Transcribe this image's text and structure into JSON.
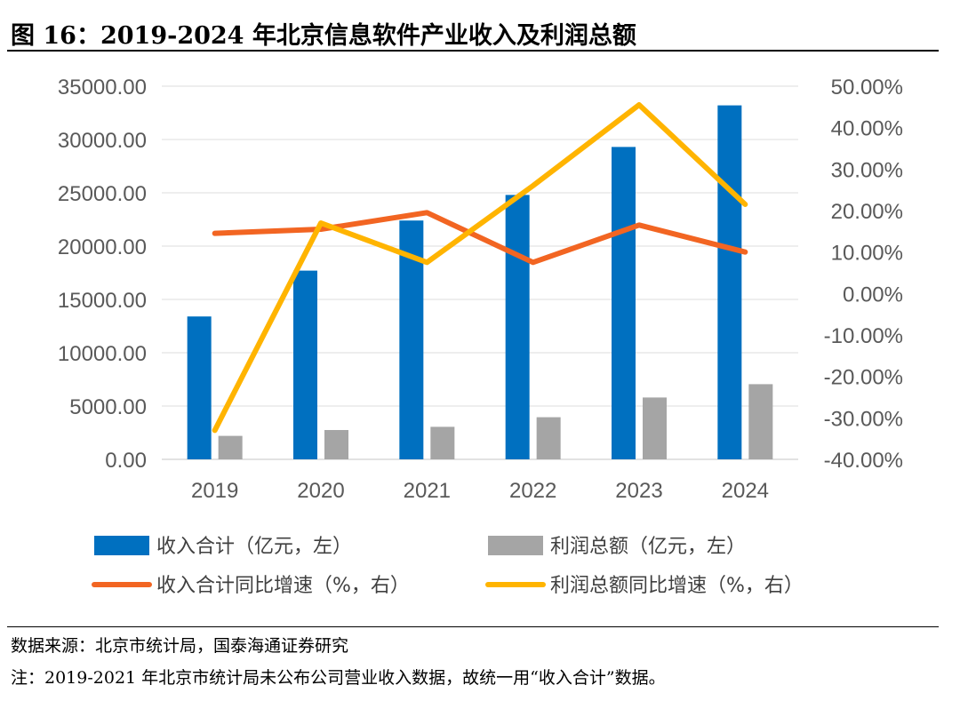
{
  "figure": {
    "title": "图 16：2019-2024 年北京信息软件产业收入及利润总额",
    "source": "数据来源：北京市统计局，国泰海通证券研究",
    "note": "注：2019-2021 年北京市统计局未公布公司营业收入数据，故统一用“收入合计”数据。"
  },
  "chart_data": {
    "type": "bar",
    "title": "2019-2024 年北京信息软件产业收入及利润总额",
    "categories": [
      "2019",
      "2020",
      "2021",
      "2022",
      "2023",
      "2024"
    ],
    "left_axis": {
      "ylim": [
        0,
        35000
      ],
      "ticks": [
        "0.00",
        "5000.00",
        "10000.00",
        "15000.00",
        "20000.00",
        "25000.00",
        "30000.00",
        "35000.00"
      ],
      "tick_values": [
        0,
        5000,
        10000,
        15000,
        20000,
        25000,
        30000,
        35000
      ]
    },
    "right_axis": {
      "ylim": [
        -40,
        50
      ],
      "ticks": [
        "-40.00%",
        "-30.00%",
        "-20.00%",
        "-10.00%",
        "0.00%",
        "10.00%",
        "20.00%",
        "30.00%",
        "40.00%",
        "50.00%"
      ],
      "tick_values": [
        -40,
        -30,
        -20,
        -10,
        0,
        10,
        20,
        30,
        40,
        50
      ]
    },
    "series": [
      {
        "name": "收入合计（亿元，左）",
        "type": "bar",
        "axis": "left",
        "color": "#0070C0",
        "values": [
          13400,
          17700,
          22400,
          24800,
          29300,
          33200
        ]
      },
      {
        "name": "利润总额（亿元，左）",
        "type": "bar",
        "axis": "left",
        "color": "#A5A5A5",
        "values": [
          2200,
          2750,
          3050,
          3950,
          5800,
          7050
        ]
      },
      {
        "name": "收入合计同比增速（%，右）",
        "type": "line",
        "axis": "right",
        "color": "#F26522",
        "values": [
          14.5,
          15.5,
          19.5,
          7.5,
          16.5,
          10.0
        ]
      },
      {
        "name": "利润总额同比增速（%，右）",
        "type": "line",
        "axis": "right",
        "color": "#FFB400",
        "values": [
          -33.0,
          17.0,
          7.5,
          26.0,
          45.5,
          21.5
        ]
      }
    ],
    "grid": true,
    "legend_position": "bottom"
  }
}
